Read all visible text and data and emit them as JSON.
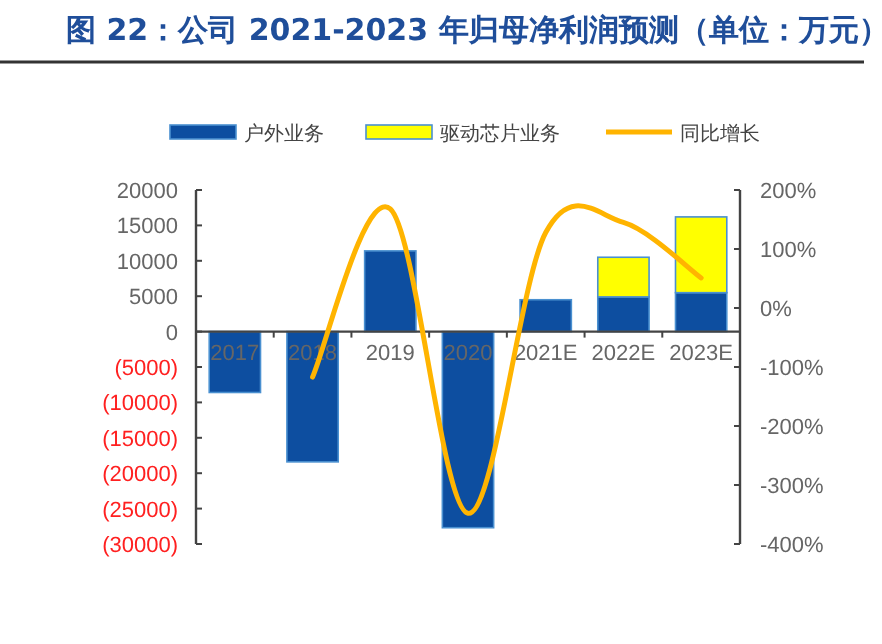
{
  "chart_data": {
    "type": "bar",
    "title": "图 22：公司 2021-2023 年归母净利润预测（单位：万元）",
    "stacked": true,
    "legend": "top",
    "grid": false,
    "categories": [
      "2017",
      "2018",
      "2019",
      "2020",
      "2021E",
      "2022E",
      "2023E"
    ],
    "series": [
      {
        "name": "户外业务",
        "color": "#0d4ea0",
        "values": [
          -8600,
          -18400,
          11400,
          -27700,
          4500,
          4900,
          5500
        ]
      },
      {
        "name": "驱动芯片业务",
        "color": "#ffff00",
        "values": [
          null,
          null,
          null,
          null,
          null,
          5600,
          10700
        ]
      },
      {
        "name": "同比增长",
        "type": "line",
        "axis": "y2",
        "color": "#ffb400",
        "values": [
          null,
          -117,
          168,
          -348,
          128,
          145,
          51
        ]
      }
    ],
    "ylim": [
      -30000,
      20000
    ],
    "yticks": [
      {
        "value": -30000,
        "label": "(30000)"
      },
      {
        "value": -25000,
        "label": "(25000)"
      },
      {
        "value": -20000,
        "label": "(20000)"
      },
      {
        "value": -15000,
        "label": "(15000)"
      },
      {
        "value": -10000,
        "label": "(10000)"
      },
      {
        "value": -5000,
        "label": "(5000)"
      },
      0,
      5000,
      10000,
      15000,
      20000
    ],
    "y2lim": [
      -400,
      200
    ],
    "y2ticks": [
      {
        "value": -400,
        "label": "-400%"
      },
      {
        "value": -300,
        "label": "-300%"
      },
      {
        "value": -200,
        "label": "-200%"
      },
      {
        "value": -100,
        "label": "-100%"
      },
      {
        "value": 0,
        "label": "0%"
      },
      {
        "value": 100,
        "label": "100%"
      },
      {
        "value": 200,
        "label": "200%"
      }
    ]
  }
}
